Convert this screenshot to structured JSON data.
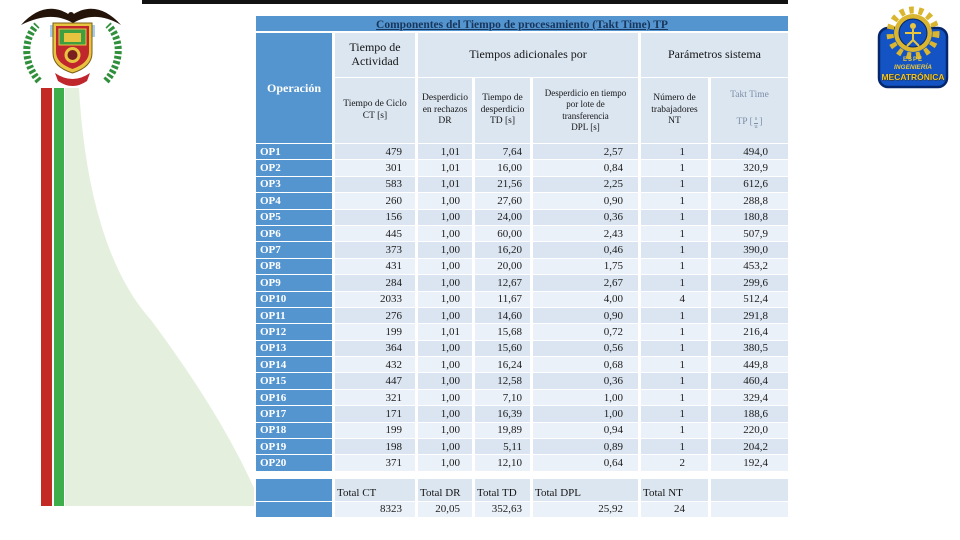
{
  "slide": {
    "title": "Componentes del Tiempo de procesamiento (Takt Time) TP"
  },
  "table": {
    "corner_header": "Operación",
    "group_headers": {
      "activity": "Tiempo de\nActividad",
      "additional": "Tiempos adicionales por",
      "system": "Parámetros sistema"
    },
    "sub_headers": {
      "ct": "Tiempo de Ciclo\nCT [s]",
      "dr": "Desperdicio\nen rechazos\nDR",
      "td": "Tiempo de\ndesperdicio\nTD [s]",
      "dpl": "Desperdicio en tiempo\npor lote de\ntransferencia\nDPL [s]",
      "nt": "Número de\ntrabajadores\nNT",
      "tp": {
        "line1": "Takt Time",
        "open": "TP [",
        "frac_top": "s",
        "frac_bottom": "u",
        "close": "]"
      }
    },
    "rows": [
      {
        "op": "OP1",
        "ct": "479",
        "dr": "1,01",
        "td": "7,64",
        "dpl": "2,57",
        "nt": "1",
        "tp": "494,0"
      },
      {
        "op": "OP2",
        "ct": "301",
        "dr": "1,01",
        "td": "16,00",
        "dpl": "0,84",
        "nt": "1",
        "tp": "320,9"
      },
      {
        "op": "OP3",
        "ct": "583",
        "dr": "1,01",
        "td": "21,56",
        "dpl": "2,25",
        "nt": "1",
        "tp": "612,6"
      },
      {
        "op": "OP4",
        "ct": "260",
        "dr": "1,00",
        "td": "27,60",
        "dpl": "0,90",
        "nt": "1",
        "tp": "288,8"
      },
      {
        "op": "OP5",
        "ct": "156",
        "dr": "1,00",
        "td": "24,00",
        "dpl": "0,36",
        "nt": "1",
        "tp": "180,8"
      },
      {
        "op": "OP6",
        "ct": "445",
        "dr": "1,00",
        "td": "60,00",
        "dpl": "2,43",
        "nt": "1",
        "tp": "507,9"
      },
      {
        "op": "OP7",
        "ct": "373",
        "dr": "1,00",
        "td": "16,20",
        "dpl": "0,46",
        "nt": "1",
        "tp": "390,0"
      },
      {
        "op": "OP8",
        "ct": "431",
        "dr": "1,00",
        "td": "20,00",
        "dpl": "1,75",
        "nt": "1",
        "tp": "453,2"
      },
      {
        "op": "OP9",
        "ct": "284",
        "dr": "1,00",
        "td": "12,67",
        "dpl": "2,67",
        "nt": "1",
        "tp": "299,6"
      },
      {
        "op": "OP10",
        "ct": "2033",
        "dr": "1,00",
        "td": "11,67",
        "dpl": "4,00",
        "nt": "4",
        "tp": "512,4"
      },
      {
        "op": "OP11",
        "ct": "276",
        "dr": "1,00",
        "td": "14,60",
        "dpl": "0,90",
        "nt": "1",
        "tp": "291,8"
      },
      {
        "op": "OP12",
        "ct": "199",
        "dr": "1,01",
        "td": "15,68",
        "dpl": "0,72",
        "nt": "1",
        "tp": "216,4"
      },
      {
        "op": "OP13",
        "ct": "364",
        "dr": "1,00",
        "td": "15,60",
        "dpl": "0,56",
        "nt": "1",
        "tp": "380,5"
      },
      {
        "op": "OP14",
        "ct": "432",
        "dr": "1,00",
        "td": "16,24",
        "dpl": "0,68",
        "nt": "1",
        "tp": "449,8"
      },
      {
        "op": "OP15",
        "ct": "447",
        "dr": "1,00",
        "td": "12,58",
        "dpl": "0,36",
        "nt": "1",
        "tp": "460,4"
      },
      {
        "op": "OP16",
        "ct": "321",
        "dr": "1,00",
        "td": "7,10",
        "dpl": "1,00",
        "nt": "1",
        "tp": "329,4"
      },
      {
        "op": "OP17",
        "ct": "171",
        "dr": "1,00",
        "td": "16,39",
        "dpl": "1,00",
        "nt": "1",
        "tp": "188,6"
      },
      {
        "op": "OP18",
        "ct": "199",
        "dr": "1,00",
        "td": "19,89",
        "dpl": "0,94",
        "nt": "1",
        "tp": "220,0"
      },
      {
        "op": "OP19",
        "ct": "198",
        "dr": "1,00",
        "td": "5,11",
        "dpl": "0,89",
        "nt": "1",
        "tp": "204,2"
      },
      {
        "op": "OP20",
        "ct": "371",
        "dr": "1,00",
        "td": "12,10",
        "dpl": "0,64",
        "nt": "2",
        "tp": "192,4"
      }
    ],
    "totals": {
      "labels": {
        "ct": "Total CT",
        "dr": "Total DR",
        "td": "Total TD",
        "dpl": "Total DPL",
        "nt": "Total NT"
      },
      "values": {
        "ct": "8323",
        "dr": "20,05",
        "td": "352,63",
        "dpl": "25,92",
        "nt": "24"
      }
    }
  },
  "logos": {
    "left": "university-crest",
    "right": {
      "line1": "ESPE",
      "line2": "INGENIERÍA",
      "line3": "MECATRÓNICA"
    }
  },
  "colors": {
    "accent_blue": "#5595cf",
    "header_light": "#dce6f1",
    "band_dark": "#dbe5f1",
    "band_light": "#ebf1f9",
    "title_text": "#17365d",
    "stripe_red": "#c22a23",
    "stripe_green": "#3dae49",
    "curve_green": "#e4efdd",
    "logo_blue": "#1353c4",
    "logo_gold": "#e9c63d"
  }
}
